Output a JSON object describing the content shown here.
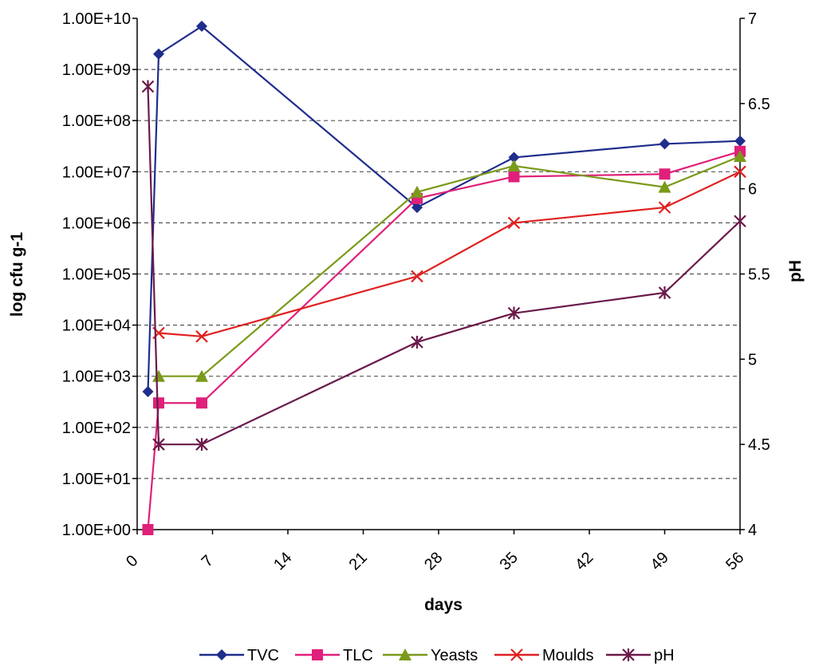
{
  "chart_data": {
    "type": "line",
    "xlabel": "days",
    "ylabel_left": "log cfu g-1",
    "ylabel_right": "pH",
    "x_ticks": [
      "0",
      "7",
      "14",
      "21",
      "28",
      "35",
      "42",
      "49",
      "56"
    ],
    "xlim": [
      0,
      56
    ],
    "y_left_ticks": [
      "1.00E+00",
      "1.00E+01",
      "1.00E+02",
      "1.00E+03",
      "1.00E+04",
      "1.00E+05",
      "1.00E+06",
      "1.00E+07",
      "1.00E+08",
      "1.00E+09",
      "1.00E+10"
    ],
    "y_left_scale": "log",
    "y_left_lim": [
      1,
      10000000000
    ],
    "y_right_ticks": [
      "4",
      "4.5",
      "5",
      "5.5",
      "6",
      "6.5",
      "7"
    ],
    "y_right_lim": [
      4,
      7
    ],
    "grid": "horizontal dashed",
    "legend_position": "bottom",
    "series": [
      {
        "name": "TVC",
        "axis": "left",
        "color": "#1f2d8c",
        "marker": "diamond",
        "x": [
          1,
          2,
          6,
          26,
          35,
          49,
          56
        ],
        "y": [
          500,
          2000000000,
          7000000000,
          2000000,
          19000000,
          35000000,
          40000000
        ]
      },
      {
        "name": "TLC",
        "axis": "left",
        "color": "#e0207a",
        "marker": "square",
        "x": [
          1,
          2,
          6,
          26,
          35,
          49,
          56
        ],
        "y": [
          1,
          300,
          300,
          3000000,
          8000000,
          9000000,
          25000000
        ]
      },
      {
        "name": "Yeasts",
        "axis": "left",
        "color": "#7a9a1a",
        "marker": "triangle",
        "x": [
          2,
          6,
          26,
          35,
          49,
          56
        ],
        "y": [
          1000,
          1000,
          4000000,
          13000000,
          5000000,
          20000000
        ]
      },
      {
        "name": "Moulds",
        "axis": "left",
        "color": "#e02020",
        "marker": "x",
        "x": [
          2,
          6,
          26,
          35,
          49,
          56
        ],
        "y": [
          7000,
          6000,
          90000,
          1000000,
          2000000,
          10000000
        ]
      },
      {
        "name": "pH",
        "axis": "right",
        "color": "#6a1a4a",
        "marker": "star",
        "x": [
          1,
          2,
          6,
          26,
          35,
          49,
          56
        ],
        "y": [
          6.6,
          4.5,
          4.5,
          5.1,
          5.27,
          5.39,
          5.81
        ]
      }
    ]
  }
}
